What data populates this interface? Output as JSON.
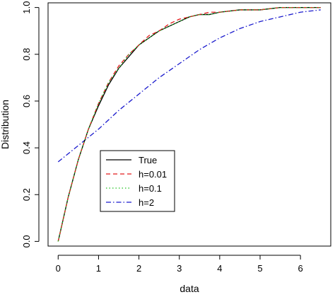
{
  "chart_data": {
    "type": "line",
    "xlabel": "data",
    "ylabel": "Distribution",
    "xlim": [
      -0.25,
      6.75
    ],
    "ylim": [
      -0.02,
      1.02
    ],
    "x_ticks": [
      0,
      1,
      2,
      3,
      4,
      5,
      6
    ],
    "y_ticks": [
      0.0,
      0.2,
      0.4,
      0.6,
      0.8,
      1.0
    ],
    "y_tick_labels": [
      "0.0",
      "0.2",
      "0.4",
      "0.6",
      "0.8",
      "1.0"
    ],
    "grid": false,
    "legend": {
      "placement": "center-left",
      "framed": true
    },
    "series": [
      {
        "name": "True",
        "color": "#000000",
        "dash": "solid",
        "x": [
          0,
          0.25,
          0.5,
          0.75,
          1,
          1.25,
          1.5,
          1.75,
          2,
          2.25,
          2.5,
          2.75,
          3,
          3.25,
          3.5,
          3.75,
          4,
          4.5,
          5,
          5.5,
          6,
          6.5
        ],
        "y": [
          0.0,
          0.19,
          0.35,
          0.48,
          0.58,
          0.67,
          0.74,
          0.79,
          0.84,
          0.87,
          0.9,
          0.92,
          0.94,
          0.96,
          0.97,
          0.97,
          0.98,
          0.99,
          0.99,
          1.0,
          1.0,
          1.0
        ]
      },
      {
        "name": "h=0.01",
        "color": "#e41a1c",
        "dash": "dashed",
        "x": [
          0,
          0.25,
          0.5,
          0.75,
          1,
          1.25,
          1.5,
          1.75,
          2,
          2.25,
          2.5,
          2.75,
          3,
          3.25,
          3.5,
          3.75,
          4,
          4.5,
          5,
          5.5,
          6,
          6.5
        ],
        "y": [
          0.0,
          0.19,
          0.35,
          0.48,
          0.59,
          0.68,
          0.75,
          0.8,
          0.84,
          0.88,
          0.9,
          0.93,
          0.95,
          0.96,
          0.97,
          0.98,
          0.98,
          0.99,
          0.99,
          1.0,
          1.0,
          1.0
        ]
      },
      {
        "name": "h=0.1",
        "color": "#1ec21e",
        "dash": "dotted",
        "x": [
          0,
          0.25,
          0.5,
          0.75,
          1,
          1.25,
          1.5,
          1.75,
          2,
          2.25,
          2.5,
          2.75,
          3,
          3.25,
          3.5,
          3.75,
          4,
          4.5,
          5,
          5.5,
          6,
          6.5
        ],
        "y": [
          0.0,
          0.19,
          0.35,
          0.48,
          0.59,
          0.68,
          0.74,
          0.8,
          0.84,
          0.87,
          0.9,
          0.92,
          0.94,
          0.96,
          0.97,
          0.97,
          0.98,
          0.99,
          0.99,
          1.0,
          1.0,
          1.0
        ]
      },
      {
        "name": "h=2",
        "color": "#1a1acd",
        "dash": "dashdot",
        "x": [
          0,
          0.5,
          1,
          1.5,
          2,
          2.5,
          3,
          3.5,
          4,
          4.5,
          5,
          5.5,
          6,
          6.5
        ],
        "y": [
          0.34,
          0.41,
          0.48,
          0.56,
          0.63,
          0.7,
          0.76,
          0.82,
          0.87,
          0.91,
          0.94,
          0.96,
          0.98,
          0.99
        ]
      }
    ]
  }
}
